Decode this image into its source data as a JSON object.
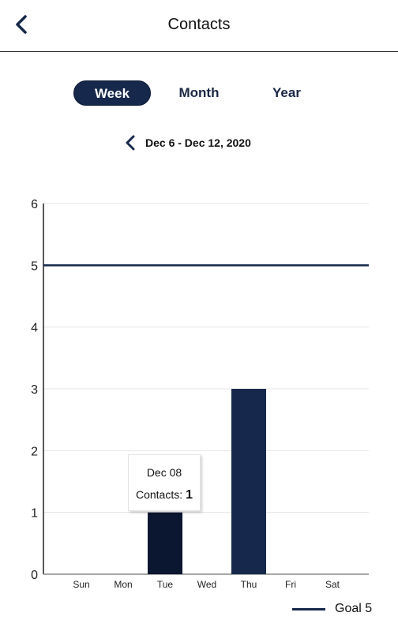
{
  "header": {
    "title": "Contacts",
    "back_icon": "chevron-left-icon"
  },
  "periods": [
    {
      "label": "Week",
      "active": true
    },
    {
      "label": "Month",
      "active": false
    },
    {
      "label": "Year",
      "active": false
    }
  ],
  "range": {
    "label": "Dec 6 - Dec 12, 2020",
    "prev_icon": "chevron-left-icon"
  },
  "colors": {
    "primary": "#16284b",
    "selected_bar": "#0b1730",
    "grid": "#e4e4e4"
  },
  "chart_data": {
    "type": "bar",
    "categories": [
      "Sun",
      "Mon",
      "Tue",
      "Wed",
      "Thu",
      "Fri",
      "Sat"
    ],
    "values": [
      0,
      0,
      1,
      0,
      3,
      0,
      0
    ],
    "ylim": [
      0,
      6
    ],
    "yticks": [
      0,
      1,
      2,
      3,
      4,
      5,
      6
    ],
    "goal": 5,
    "grid": true,
    "selected_index": 2,
    "legend": {
      "label": "Goal 5",
      "position": "bottom-right"
    }
  },
  "tooltip": {
    "date": "Dec 08",
    "label": "Contacts:",
    "value": "1"
  }
}
